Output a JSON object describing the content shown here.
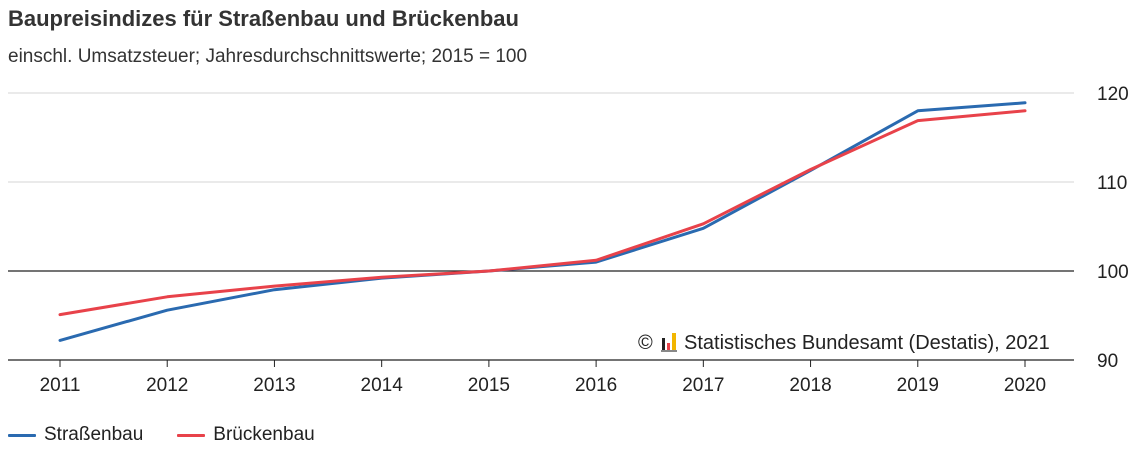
{
  "colors": {
    "strassenbau": "#2a6ab0",
    "brueckenbau": "#e8424a",
    "grid": "#d4d4d4",
    "axis": "#222222"
  },
  "chart_data": {
    "type": "line",
    "title": "Baupreisindizes für Straßenbau und Brückenbau",
    "subtitle": "einschl. Umsatzsteuer; Jahresdurchschnittswerte; 2015 = 100",
    "x": [
      "2011",
      "2012",
      "2013",
      "2014",
      "2015",
      "2016",
      "2017",
      "2018",
      "2019",
      "2020"
    ],
    "y_ticks": [
      "90",
      "100",
      "110",
      "120"
    ],
    "ylim": [
      90,
      120
    ],
    "reference_line": 100,
    "grid": true,
    "y_axis_side": "right",
    "legend_position": "bottom-left",
    "series": [
      {
        "name": "Straßenbau",
        "color_key": "strassenbau",
        "values": [
          92.2,
          95.6,
          97.9,
          99.2,
          100.0,
          101.0,
          104.8,
          111.3,
          118.0,
          118.9
        ]
      },
      {
        "name": "Brückenbau",
        "color_key": "brueckenbau",
        "values": [
          95.1,
          97.1,
          98.3,
          99.3,
          100.0,
          101.2,
          105.3,
          111.4,
          116.9,
          118.0
        ]
      }
    ],
    "credit": "Statistisches Bundesamt (Destatis), 2021",
    "credit_symbol": "©"
  }
}
